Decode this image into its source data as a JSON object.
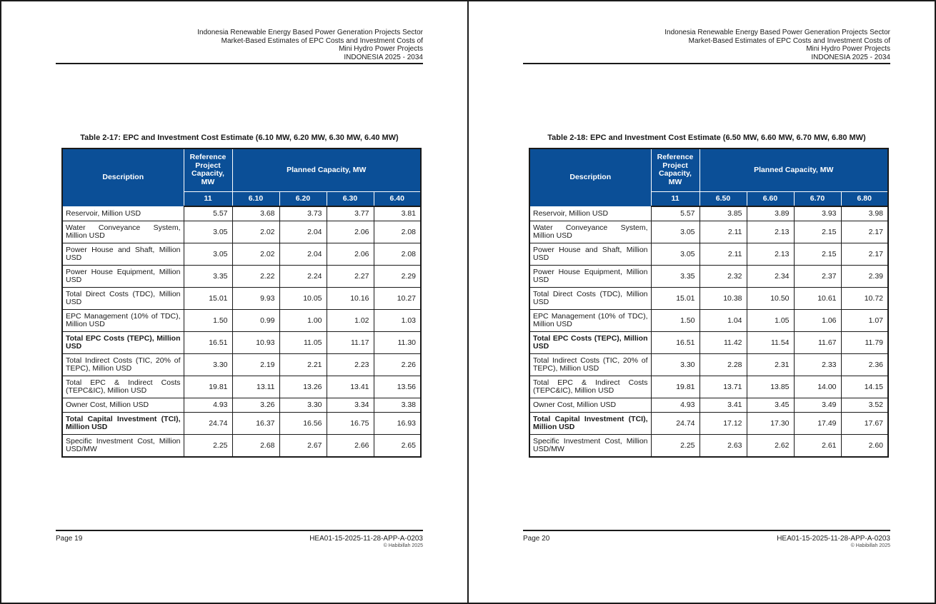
{
  "colors": {
    "table_header_blue": "#0b4f97",
    "border_dark": "#1a1a1a",
    "header_text_white": "#ffffff"
  },
  "doc_header_lines": [
    "Indonesia Renewable Energy Based Power Generation Projects Sector",
    "Market-Based Estimates of EPC Costs and Investment Costs of",
    "Mini Hydro Power Projects",
    "INDONESIA 2025 - 2034"
  ],
  "pages": [
    {
      "table_title": "Table 2-17: EPC and Investment Cost Estimate (6.10 MW, 6.20 MW, 6.30 MW, 6.40 MW)",
      "table": {
        "header": {
          "description": "Description",
          "reference": "Reference Project Capacity, MW",
          "planned": "Planned Capacity, MW",
          "reference_value": "11",
          "capacities": [
            "6.10",
            "6.20",
            "6.30",
            "6.40"
          ]
        },
        "rows": [
          {
            "label": "Reservoir, Million USD",
            "bold": false,
            "values": [
              "5.57",
              "3.68",
              "3.73",
              "3.77",
              "3.81"
            ]
          },
          {
            "label": "Water Conveyance System, Million USD",
            "bold": false,
            "values": [
              "3.05",
              "2.02",
              "2.04",
              "2.06",
              "2.08"
            ]
          },
          {
            "label": "Power House and Shaft, Million USD",
            "bold": false,
            "values": [
              "3.05",
              "2.02",
              "2.04",
              "2.06",
              "2.08"
            ]
          },
          {
            "label": "Power House Equipment, Million USD",
            "bold": false,
            "values": [
              "3.35",
              "2.22",
              "2.24",
              "2.27",
              "2.29"
            ]
          },
          {
            "label": "Total Direct Costs (TDC), Million USD",
            "bold": false,
            "values": [
              "15.01",
              "9.93",
              "10.05",
              "10.16",
              "10.27"
            ]
          },
          {
            "label": "EPC Management (10% of TDC), Million USD",
            "bold": false,
            "values": [
              "1.50",
              "0.99",
              "1.00",
              "1.02",
              "1.03"
            ]
          },
          {
            "label": "Total EPC Costs (TEPC), Million USD",
            "bold": true,
            "values": [
              "16.51",
              "10.93",
              "11.05",
              "11.17",
              "11.30"
            ]
          },
          {
            "label": "Total Indirect Costs (TIC, 20% of TEPC), Million USD",
            "bold": false,
            "values": [
              "3.30",
              "2.19",
              "2.21",
              "2.23",
              "2.26"
            ]
          },
          {
            "label": "Total EPC & Indirect Costs (TEPC&IC), Million USD",
            "bold": false,
            "values": [
              "19.81",
              "13.11",
              "13.26",
              "13.41",
              "13.56"
            ]
          },
          {
            "label": "Owner Cost, Million USD",
            "bold": false,
            "values": [
              "4.93",
              "3.26",
              "3.30",
              "3.34",
              "3.38"
            ]
          },
          {
            "label": "Total Capital Investment (TCI), Million USD",
            "bold": true,
            "values": [
              "24.74",
              "16.37",
              "16.56",
              "16.75",
              "16.93"
            ]
          },
          {
            "label": "Specific Investment Cost, Million USD/MW",
            "bold": false,
            "values": [
              "2.25",
              "2.68",
              "2.67",
              "2.66",
              "2.65"
            ]
          }
        ]
      },
      "footer": {
        "page_label": "Page 19",
        "doc_code": "HEA01-15-2025-11-28-APP-A-0203",
        "copyright": "© Habibillah 2025"
      }
    },
    {
      "table_title": "Table 2-18: EPC and Investment Cost Estimate (6.50 MW, 6.60 MW, 6.70 MW, 6.80 MW)",
      "table": {
        "header": {
          "description": "Description",
          "reference": "Reference Project Capacity, MW",
          "planned": "Planned Capacity, MW",
          "reference_value": "11",
          "capacities": [
            "6.50",
            "6.60",
            "6.70",
            "6.80"
          ]
        },
        "rows": [
          {
            "label": "Reservoir, Million USD",
            "bold": false,
            "values": [
              "5.57",
              "3.85",
              "3.89",
              "3.93",
              "3.98"
            ]
          },
          {
            "label": "Water Conveyance System, Million USD",
            "bold": false,
            "values": [
              "3.05",
              "2.11",
              "2.13",
              "2.15",
              "2.17"
            ]
          },
          {
            "label": "Power House and Shaft, Million USD",
            "bold": false,
            "values": [
              "3.05",
              "2.11",
              "2.13",
              "2.15",
              "2.17"
            ]
          },
          {
            "label": "Power House Equipment, Million USD",
            "bold": false,
            "values": [
              "3.35",
              "2.32",
              "2.34",
              "2.37",
              "2.39"
            ]
          },
          {
            "label": "Total Direct Costs (TDC), Million USD",
            "bold": false,
            "values": [
              "15.01",
              "10.38",
              "10.50",
              "10.61",
              "10.72"
            ]
          },
          {
            "label": "EPC Management (10% of TDC), Million USD",
            "bold": false,
            "values": [
              "1.50",
              "1.04",
              "1.05",
              "1.06",
              "1.07"
            ]
          },
          {
            "label": "Total EPC Costs (TEPC), Million USD",
            "bold": true,
            "values": [
              "16.51",
              "11.42",
              "11.54",
              "11.67",
              "11.79"
            ]
          },
          {
            "label": "Total Indirect Costs (TIC, 20% of TEPC), Million USD",
            "bold": false,
            "values": [
              "3.30",
              "2.28",
              "2.31",
              "2.33",
              "2.36"
            ]
          },
          {
            "label": "Total EPC & Indirect Costs (TEPC&IC), Million USD",
            "bold": false,
            "values": [
              "19.81",
              "13.71",
              "13.85",
              "14.00",
              "14.15"
            ]
          },
          {
            "label": "Owner Cost, Million USD",
            "bold": false,
            "values": [
              "4.93",
              "3.41",
              "3.45",
              "3.49",
              "3.52"
            ]
          },
          {
            "label": "Total Capital Investment (TCI), Million USD",
            "bold": true,
            "values": [
              "24.74",
              "17.12",
              "17.30",
              "17.49",
              "17.67"
            ]
          },
          {
            "label": "Specific Investment Cost, Million USD/MW",
            "bold": false,
            "values": [
              "2.25",
              "2.63",
              "2.62",
              "2.61",
              "2.60"
            ]
          }
        ]
      },
      "footer": {
        "page_label": "Page 20",
        "doc_code": "HEA01-15-2025-11-28-APP-A-0203",
        "copyright": "© Habibillah 2025"
      }
    }
  ]
}
